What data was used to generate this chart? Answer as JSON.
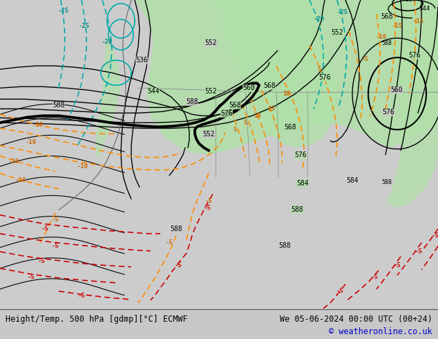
{
  "title_left": "Height/Temp. 500 hPa [gdmp][°C] ECMWF",
  "title_right": "We 05-06-2024 00:00 UTC (00+24)",
  "copyright": "© weatheronline.co.uk",
  "bg_color": "#d8d8d8",
  "map_bg_color": "#d0d0d0",
  "land_color": "#c8c8c8",
  "green_fill_color": "#b8e8b0",
  "bottom_bar_color": "#e8e8e8",
  "figsize": [
    6.34,
    4.9
  ],
  "dpi": 100
}
